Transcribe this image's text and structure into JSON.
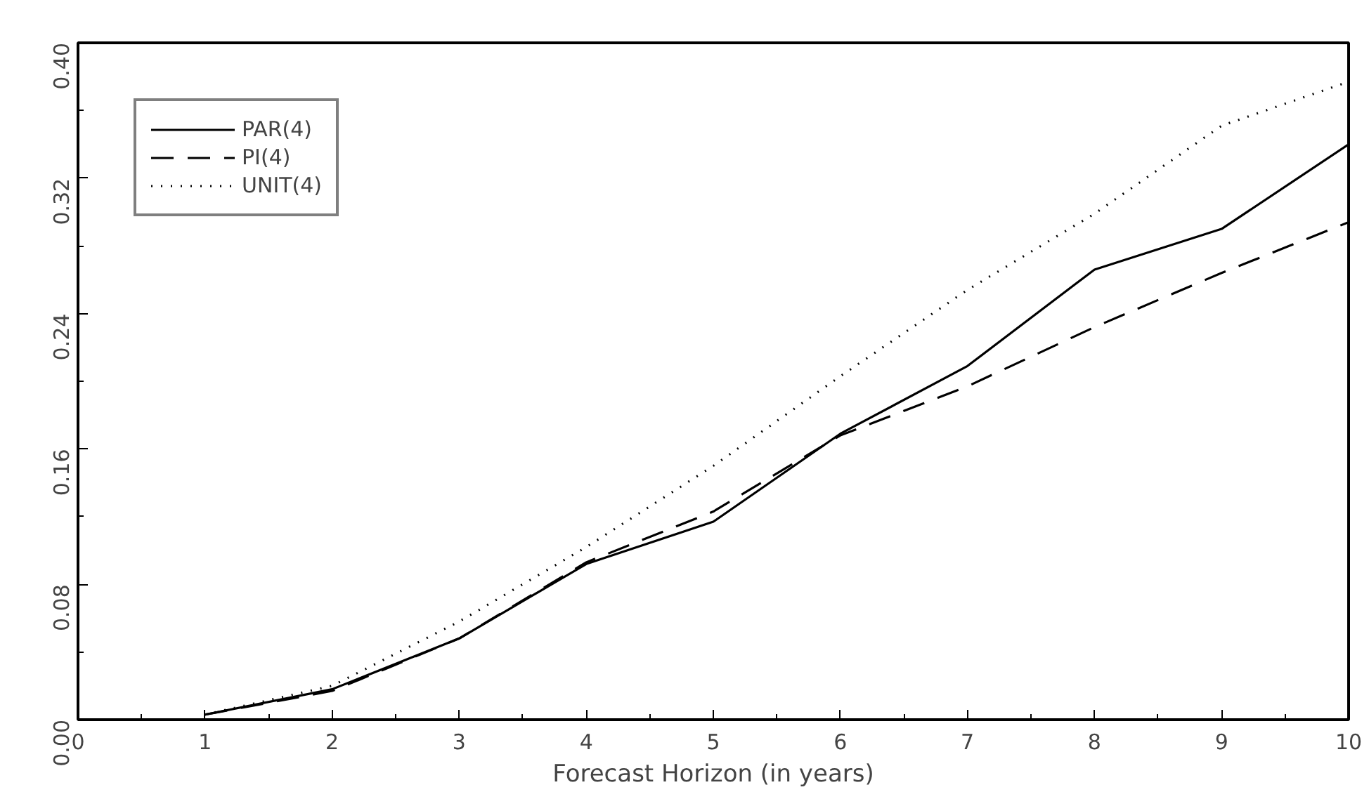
{
  "chart_data": {
    "type": "line",
    "xlabel": "Forecast Horizon (in years)",
    "x": [
      1,
      2,
      3,
      4,
      5,
      6,
      7,
      8,
      9,
      10
    ],
    "series": [
      {
        "name": "PAR(4)",
        "color": "#000000",
        "line_style": "solid",
        "values": [
          0.003,
          0.018,
          0.048,
          0.092,
          0.117,
          0.169,
          0.209,
          0.266,
          0.29,
          0.34
        ]
      },
      {
        "name": "PI(4)",
        "color": "#000000",
        "line_style": "dashed",
        "values": [
          0.003,
          0.017,
          0.048,
          0.093,
          0.123,
          0.168,
          0.197,
          0.232,
          0.264,
          0.294
        ]
      },
      {
        "name": "UNIT(4)",
        "color": "#000000",
        "line_style": "dotted",
        "values": [
          0.003,
          0.02,
          0.058,
          0.102,
          0.15,
          0.203,
          0.254,
          0.299,
          0.351,
          0.377
        ]
      }
    ],
    "xlim": [
      0,
      10
    ],
    "xticks": [
      0,
      1,
      2,
      3,
      4,
      5,
      6,
      7,
      8,
      9,
      10
    ],
    "ylim": [
      0,
      0.4
    ],
    "yticks": [
      {
        "value": 0,
        "label": "0.00"
      },
      {
        "value": 0.08,
        "label": "0.08"
      },
      {
        "value": 0.16,
        "label": "0.16"
      },
      {
        "value": 0.24,
        "label": "0.24"
      },
      {
        "value": 0.32,
        "label": "0.32"
      },
      {
        "value": 0.4,
        "label": "0.40"
      }
    ],
    "grid": false,
    "legend": "top left",
    "marker": "none"
  }
}
